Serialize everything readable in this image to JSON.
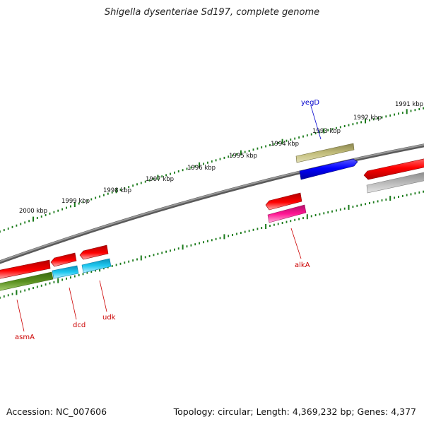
{
  "header": {
    "title": "Shigella dysenteriae Sd197, complete genome"
  },
  "footer": {
    "accession": "Accession: NC_007606",
    "summary": "Topology: circular; Length: 4,369,232 bp; Genes: 4,377"
  },
  "scale": {
    "outer_ticks": [
      "1991 kbp",
      "1992 kbp",
      "1993 kbp",
      "1994 kbp",
      "1995 kbp",
      "1996 kbp",
      "1997 kbp",
      "1998 kbp",
      "1999 kbp",
      "2000 kbp"
    ]
  },
  "genes": [
    {
      "name": "yegD",
      "strand": "forward",
      "color": "#0000cc"
    },
    {
      "name": "alkA",
      "strand": "reverse",
      "color": "#cc0000"
    },
    {
      "name": "asmA",
      "strand": "reverse",
      "color": "#cc0000"
    },
    {
      "name": "dcd",
      "strand": "reverse",
      "color": "#cc0000"
    },
    {
      "name": "udk",
      "strand": "reverse",
      "color": "#cc0000"
    }
  ],
  "colors": {
    "backbone": "#777777",
    "tick_dots": "#1a7a1a",
    "forward_gene": "#ff0000",
    "reverse_gene": "#ff0000",
    "blue_feature": "#0000ff",
    "olive_feature": "#b5b070",
    "cyan_feature": "#1ec8f0",
    "magenta_feature": "#ff1493",
    "green_feature": "#5a9020",
    "gray_feature": "#b8b8b8"
  }
}
